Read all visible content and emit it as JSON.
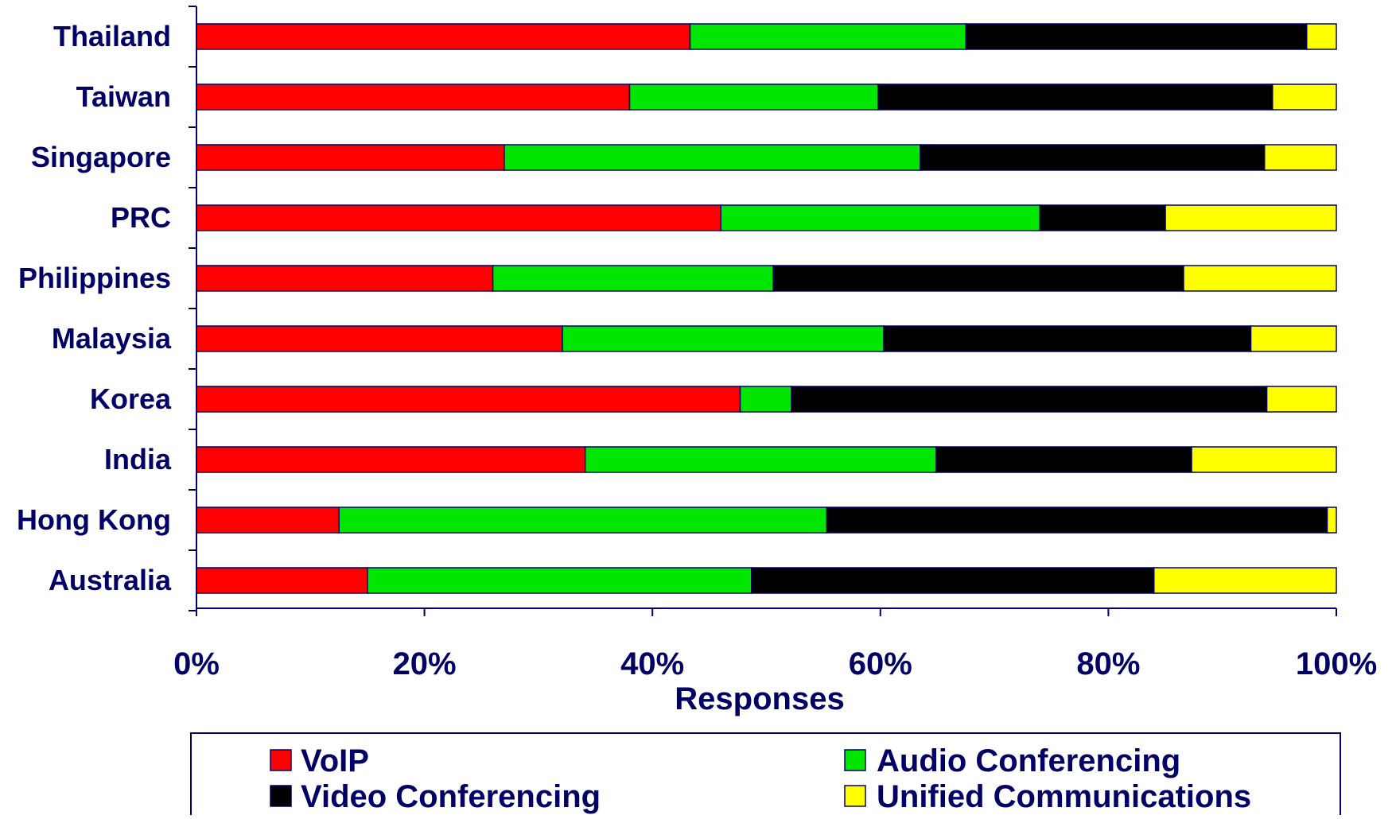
{
  "chart_data": {
    "type": "bar",
    "orientation": "horizontal",
    "stacked": "100%",
    "title": "",
    "xlabel": "Responses",
    "ylabel": "",
    "xlim": [
      0,
      100
    ],
    "x_ticks": [
      "0%",
      "20%",
      "40%",
      "60%",
      "80%",
      "100%"
    ],
    "grid": false,
    "legend_position": "bottom",
    "categories": [
      "Thailand",
      "Taiwan",
      "Singapore",
      "PRC",
      "Philippines",
      "Malaysia",
      "Korea",
      "India",
      "Hong Kong",
      "Australia"
    ],
    "series": [
      {
        "name": "VoIP",
        "color": "#ff0000",
        "values": [
          43.3,
          38.0,
          27.0,
          46.0,
          26.0,
          32.1,
          47.7,
          34.1,
          12.5,
          15.0
        ]
      },
      {
        "name": "Audio Conferencing",
        "color": "#00e600",
        "values": [
          24.2,
          21.8,
          36.5,
          28.0,
          24.6,
          28.2,
          4.5,
          30.8,
          42.8,
          33.7
        ]
      },
      {
        "name": "Video Conferencing",
        "color": "#000000",
        "values": [
          29.9,
          34.6,
          30.2,
          11.0,
          36.0,
          32.2,
          41.7,
          22.4,
          43.9,
          35.3
        ]
      },
      {
        "name": "Unified Communications",
        "color": "#ffff00",
        "values": [
          2.6,
          5.6,
          6.3,
          15.0,
          13.4,
          7.5,
          6.1,
          12.7,
          0.8,
          16.0
        ]
      }
    ]
  },
  "colors": {
    "text": "#000066",
    "axis": "#000066",
    "bar_outline": "#000066"
  }
}
